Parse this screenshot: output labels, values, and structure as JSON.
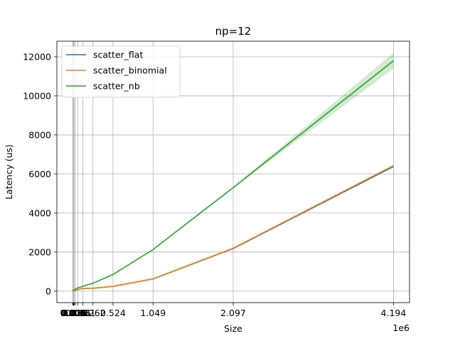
{
  "chart_data": {
    "type": "line",
    "title": "np=12",
    "xlabel": "Size",
    "ylabel": "Latency (us)",
    "x_offset_text": "1e6",
    "x": [
      1,
      2,
      4,
      8,
      16,
      32,
      64,
      128,
      256,
      512,
      1024,
      2048,
      4096,
      8192,
      16384,
      32768,
      65536,
      131072,
      262144,
      524288,
      1048576,
      2097152,
      4194304
    ],
    "xticks": [
      {
        "value": 0,
        "label": "0.000"
      },
      {
        "value": 1,
        "label": "0.000"
      },
      {
        "value": 2,
        "label": "0.000"
      },
      {
        "value": 4,
        "label": "0.000"
      },
      {
        "value": 8,
        "label": "0.000"
      },
      {
        "value": 16,
        "label": "0.000"
      },
      {
        "value": 32,
        "label": "0.000"
      },
      {
        "value": 64,
        "label": "0.000"
      },
      {
        "value": 128,
        "label": "0.000"
      },
      {
        "value": 256,
        "label": "0.000"
      },
      {
        "value": 512,
        "label": "0.001"
      },
      {
        "value": 1024,
        "label": "0.001"
      },
      {
        "value": 2048,
        "label": "0.002"
      },
      {
        "value": 4096,
        "label": "0.004"
      },
      {
        "value": 8192,
        "label": "0.008"
      },
      {
        "value": 16384,
        "label": "0.016"
      },
      {
        "value": 32768,
        "label": "0.033"
      },
      {
        "value": 65536,
        "label": "0.066"
      },
      {
        "value": 131072,
        "label": "0.131"
      },
      {
        "value": 262144,
        "label": "0.262"
      },
      {
        "value": 524288,
        "label": "0.524"
      },
      {
        "value": 1048576,
        "label": "1.049"
      },
      {
        "value": 2097152,
        "label": "2.097"
      },
      {
        "value": 4194304,
        "label": "4.194"
      }
    ],
    "yticks": [
      0,
      2000,
      4000,
      6000,
      8000,
      10000,
      12000
    ],
    "xlim": [
      -209715,
      4404019
    ],
    "ylim": [
      -590,
      12800
    ],
    "grid": true,
    "legend_position": "top-left",
    "series": [
      {
        "name": "scatter_flat",
        "color": "#1f77b4",
        "values": [
          5,
          5,
          5,
          5,
          5,
          6,
          6,
          7,
          8,
          10,
          12,
          15,
          20,
          28,
          40,
          55,
          80,
          135,
          145,
          240,
          620,
          2180,
          6380
        ],
        "band": null
      },
      {
        "name": "scatter_binomial",
        "color": "#ff7f0e",
        "values": [
          5,
          5,
          5,
          5,
          5,
          6,
          6,
          7,
          8,
          10,
          12,
          15,
          20,
          28,
          40,
          55,
          80,
          138,
          150,
          245,
          630,
          2200,
          6430
        ],
        "band": null
      },
      {
        "name": "scatter_nb",
        "color": "#2ca02c",
        "values": [
          6,
          6,
          6,
          6,
          6,
          7,
          7,
          8,
          9,
          11,
          14,
          18,
          25,
          40,
          60,
          100,
          170,
          250,
          400,
          850,
          2130,
          5300,
          11800
        ],
        "band": {
          "lower": [
            6,
            6,
            6,
            6,
            6,
            7,
            7,
            8,
            9,
            11,
            14,
            18,
            25,
            40,
            60,
            100,
            170,
            250,
            400,
            850,
            2120,
            5270,
            11400
          ],
          "upper": [
            6,
            6,
            6,
            6,
            6,
            7,
            7,
            8,
            9,
            11,
            14,
            18,
            25,
            40,
            60,
            100,
            170,
            250,
            400,
            850,
            2140,
            5330,
            12200
          ]
        }
      }
    ]
  }
}
